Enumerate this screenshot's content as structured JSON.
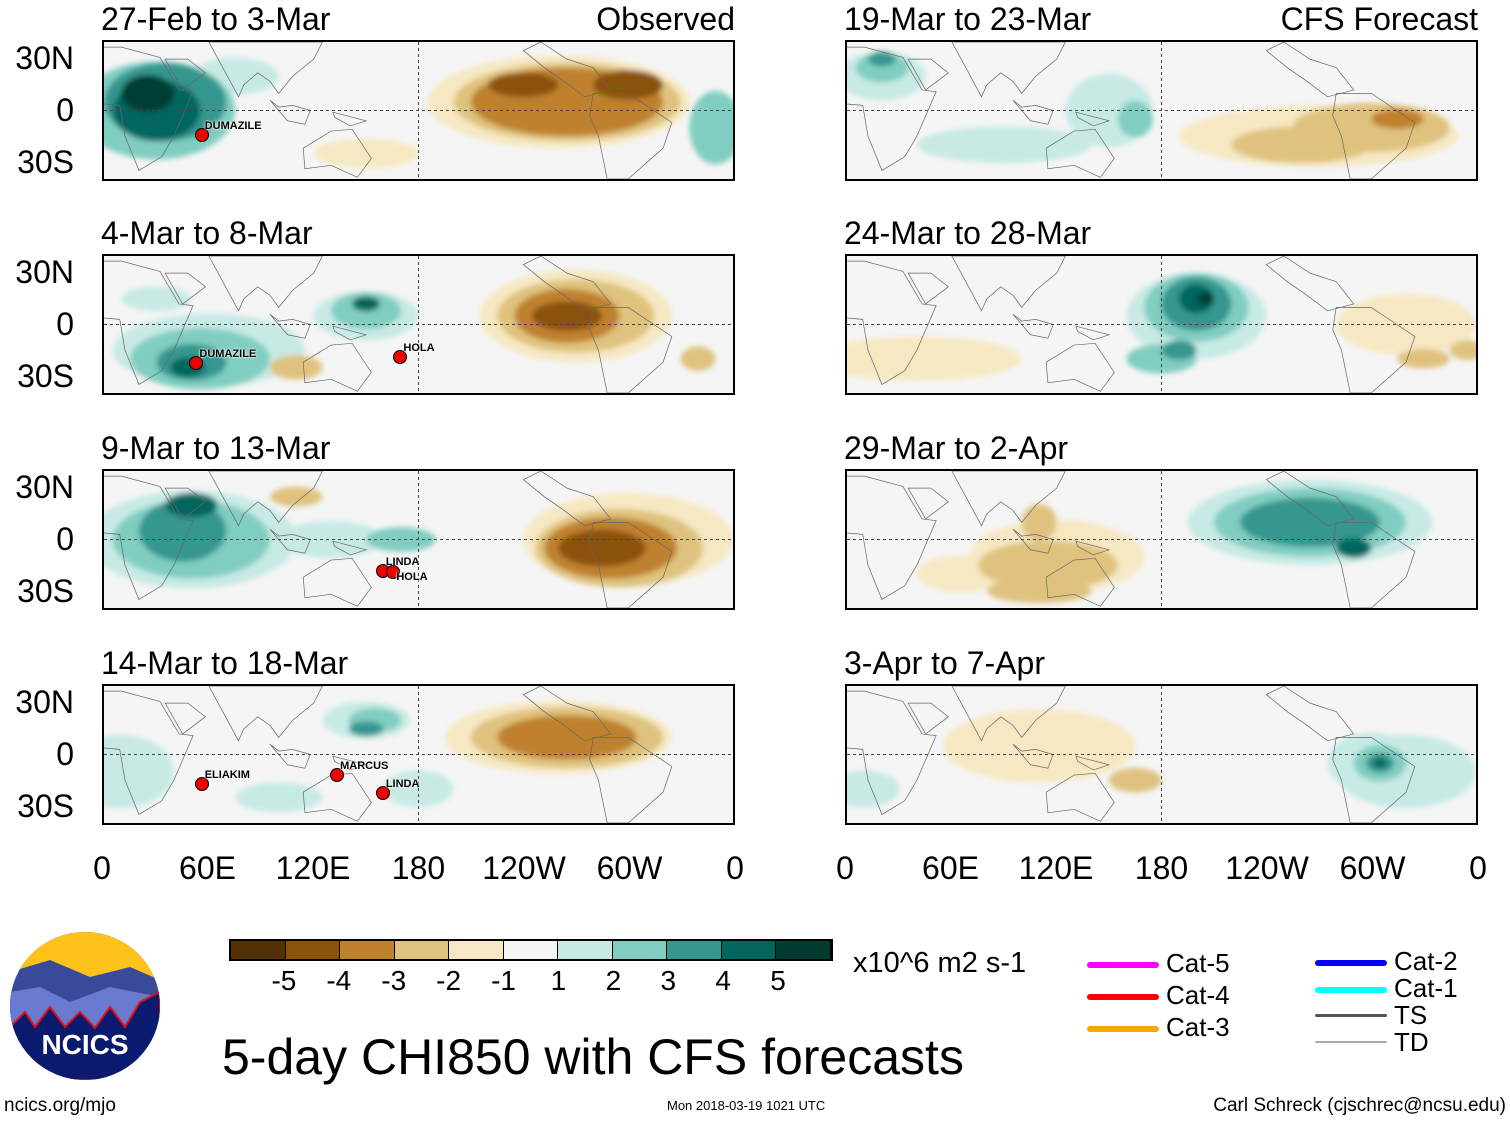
{
  "panels": [
    {
      "title": "27-Feb to 3-Mar",
      "tag": "Observed",
      "storms": [
        {
          "name": "DUMAZILE",
          "lon": 55,
          "lat": -12
        }
      ]
    },
    {
      "title": "4-Mar to 8-Mar",
      "storms": [
        {
          "name": "DUMAZILE",
          "lon": 52,
          "lat": -20
        },
        {
          "name": "HOLA",
          "lon": 168,
          "lat": -17
        }
      ]
    },
    {
      "title": "9-Mar to 13-Mar",
      "storms": [
        {
          "name": "LINDA",
          "lon": 158,
          "lat": -16
        },
        {
          "name": "HOLA",
          "lon": 164,
          "lat": -17
        }
      ]
    },
    {
      "title": "14-Mar to 18-Mar",
      "storms": [
        {
          "name": "ELIAKIM",
          "lon": 55,
          "lat": -15
        },
        {
          "name": "MARCUS",
          "lon": 132,
          "lat": -10
        },
        {
          "name": "LINDA",
          "lon": 158,
          "lat": -20
        }
      ]
    },
    {
      "title": "19-Mar to 23-Mar",
      "tag": "CFS Forecast",
      "storms": []
    },
    {
      "title": "24-Mar to 28-Mar",
      "storms": []
    },
    {
      "title": "29-Mar to 2-Apr",
      "storms": []
    },
    {
      "title": "3-Apr to 7-Apr",
      "storms": []
    }
  ],
  "lat_labels": [
    "30N",
    "0",
    "30S"
  ],
  "lon_labels": [
    "0",
    "60E",
    "120E",
    "180",
    "120W",
    "60W",
    "0"
  ],
  "colorbar": {
    "colors": [
      "#543005",
      "#8c510a",
      "#bf812d",
      "#dfc27d",
      "#f6e8c3",
      "#f5f5f5",
      "#c7eae5",
      "#80cdc1",
      "#35978f",
      "#01665e",
      "#003c30"
    ],
    "labels": [
      "-5",
      "-4",
      "-3",
      "-2",
      "-1",
      "1",
      "2",
      "3",
      "4",
      "5"
    ],
    "units": "x10^6 m2 s-1"
  },
  "legend": [
    {
      "label": "Cat-5",
      "color": "#ff00ff"
    },
    {
      "label": "Cat-4",
      "color": "#ff0000"
    },
    {
      "label": "Cat-3",
      "color": "#ffa500"
    },
    {
      "label": "Cat-2",
      "color": "#0000ff"
    },
    {
      "label": "Cat-1",
      "color": "#00ffff"
    },
    {
      "label": "TS",
      "color": "#555555"
    },
    {
      "label": "TD",
      "color": "#aaaaaa"
    }
  ],
  "title": "5-day CHI850 with CFS forecasts",
  "logo_text": "NCICS",
  "footer": {
    "left": "ncics.org/mjo",
    "center": "Mon 2018-03-19 1021 UTC",
    "right": "Carl Schreck (cjschrec@ncsu.edu)"
  }
}
